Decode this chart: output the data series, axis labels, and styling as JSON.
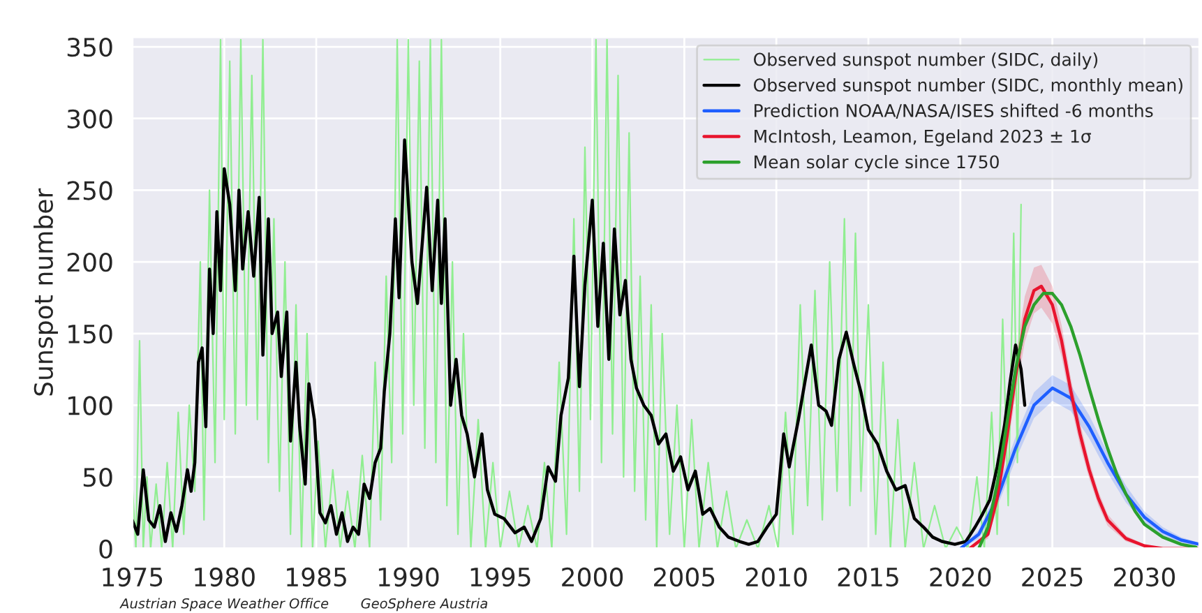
{
  "chart_data": {
    "type": "line",
    "ylabel": "Sunspot number",
    "xlim": [
      1975,
      2033
    ],
    "ylim": [
      0,
      357
    ],
    "xticks": [
      1975,
      1980,
      1985,
      1990,
      1995,
      2000,
      2005,
      2010,
      2015,
      2020,
      2025,
      2030
    ],
    "yticks": [
      0,
      50,
      100,
      150,
      200,
      250,
      300,
      350
    ],
    "grid": true,
    "legend": "top right",
    "annotations": [
      "Austrian Space Weather Office",
      "GeoSphere Austria"
    ],
    "series": [
      {
        "name": "Observed sunspot number (SIDC, daily)",
        "color": "#90ee90",
        "x": [
          1975.0,
          1975.2,
          1975.4,
          1975.6,
          1975.8,
          1976.0,
          1976.3,
          1976.6,
          1976.9,
          1977.2,
          1977.5,
          1977.8,
          1978.1,
          1978.4,
          1978.7,
          1978.9,
          1979.2,
          1979.5,
          1979.8,
          1980.0,
          1980.3,
          1980.6,
          1980.9,
          1981.2,
          1981.5,
          1981.8,
          1982.1,
          1982.4,
          1982.7,
          1983.0,
          1983.3,
          1983.6,
          1983.9,
          1984.2,
          1984.5,
          1984.8,
          1985.1,
          1985.5,
          1985.9,
          1986.3,
          1986.7,
          1987.1,
          1987.5,
          1987.9,
          1988.2,
          1988.5,
          1988.8,
          1989.1,
          1989.4,
          1989.7,
          1990.0,
          1990.3,
          1990.6,
          1990.9,
          1991.2,
          1991.5,
          1991.8,
          1992.1,
          1992.4,
          1992.7,
          1993.0,
          1993.4,
          1993.8,
          1994.2,
          1994.6,
          1995.0,
          1995.5,
          1996.0,
          1996.5,
          1997.0,
          1997.4,
          1997.8,
          1998.2,
          1998.6,
          1999.0,
          1999.3,
          1999.6,
          1999.9,
          2000.2,
          2000.5,
          2000.8,
          2001.1,
          2001.4,
          2001.7,
          2002.0,
          2002.3,
          2002.6,
          2002.9,
          2003.2,
          2003.5,
          2003.8,
          2004.2,
          2004.6,
          2005.0,
          2005.4,
          2005.8,
          2006.3,
          2006.8,
          2007.3,
          2007.8,
          2008.4,
          2009.0,
          2009.6,
          2010.1,
          2010.5,
          2010.9,
          2011.3,
          2011.7,
          2012.1,
          2012.5,
          2012.9,
          2013.3,
          2013.7,
          2014.0,
          2014.3,
          2014.6,
          2015.0,
          2015.4,
          2015.8,
          2016.2,
          2016.6,
          2017.0,
          2017.5,
          2018.0,
          2018.6,
          2019.2,
          2019.8,
          2020.4,
          2020.9,
          2021.3,
          2021.7,
          2022.0,
          2022.3,
          2022.6,
          2022.9,
          2023.1,
          2023.3
        ],
        "values": [
          45,
          0,
          145,
          0,
          50,
          0,
          45,
          0,
          60,
          0,
          95,
          10,
          100,
          40,
          200,
          20,
          250,
          60,
          355,
          90,
          340,
          80,
          355,
          100,
          330,
          90,
          355,
          60,
          230,
          40,
          200,
          10,
          170,
          0,
          150,
          0,
          75,
          0,
          55,
          0,
          40,
          0,
          65,
          0,
          130,
          20,
          190,
          60,
          355,
          80,
          355,
          100,
          340,
          70,
          355,
          60,
          355,
          30,
          200,
          10,
          150,
          0,
          90,
          0,
          60,
          0,
          40,
          0,
          30,
          0,
          60,
          0,
          130,
          10,
          230,
          40,
          280,
          90,
          355,
          60,
          355,
          80,
          330,
          50,
          290,
          40,
          190,
          20,
          170,
          0,
          150,
          10,
          100,
          0,
          90,
          0,
          60,
          0,
          40,
          0,
          20,
          0,
          30,
          0,
          95,
          10,
          170,
          30,
          180,
          20,
          200,
          40,
          230,
          30,
          220,
          40,
          170,
          10,
          130,
          0,
          90,
          0,
          60,
          0,
          30,
          0,
          15,
          0,
          50,
          0,
          95,
          10,
          160,
          30,
          220,
          60,
          240
        ]
      },
      {
        "name": "Observed sunspot number (SIDC, monthly mean)",
        "color": "#000000",
        "x": [
          1975.0,
          1975.3,
          1975.6,
          1975.9,
          1976.2,
          1976.5,
          1976.8,
          1977.1,
          1977.4,
          1977.7,
          1978.0,
          1978.2,
          1978.4,
          1978.6,
          1978.8,
          1979.0,
          1979.2,
          1979.4,
          1979.6,
          1979.8,
          1980.0,
          1980.3,
          1980.6,
          1980.8,
          1981.0,
          1981.3,
          1981.6,
          1981.9,
          1982.1,
          1982.4,
          1982.6,
          1982.9,
          1983.1,
          1983.4,
          1983.6,
          1983.9,
          1984.1,
          1984.4,
          1984.6,
          1984.9,
          1985.2,
          1985.5,
          1985.8,
          1986.1,
          1986.4,
          1986.7,
          1987.0,
          1987.3,
          1987.6,
          1987.9,
          1988.2,
          1988.5,
          1988.7,
          1989.0,
          1989.3,
          1989.5,
          1989.8,
          1990.2,
          1990.5,
          1991.0,
          1991.3,
          1991.6,
          1991.8,
          1992.0,
          1992.3,
          1992.6,
          1992.9,
          1993.2,
          1993.6,
          1994.0,
          1994.3,
          1994.7,
          1995.2,
          1995.8,
          1996.3,
          1996.7,
          1997.2,
          1997.6,
          1998.0,
          1998.3,
          1998.7,
          1999.0,
          1999.3,
          1999.6,
          2000.0,
          2000.3,
          2000.6,
          2000.9,
          2001.2,
          2001.5,
          2001.8,
          2002.1,
          2002.4,
          2002.8,
          2003.2,
          2003.6,
          2004.0,
          2004.4,
          2004.8,
          2005.2,
          2005.6,
          2006.0,
          2006.4,
          2006.9,
          2007.4,
          2008.0,
          2008.5,
          2009.0,
          2009.5,
          2010.0,
          2010.4,
          2010.7,
          2011.2,
          2011.9,
          2012.3,
          2012.7,
          2013.0,
          2013.4,
          2013.8,
          2014.2,
          2014.6,
          2015.0,
          2015.5,
          2016.0,
          2016.5,
          2017.0,
          2017.5,
          2018.0,
          2018.5,
          2019.0,
          2019.7,
          2020.3,
          2020.8,
          2021.2,
          2021.6,
          2022.0,
          2022.4,
          2022.7,
          2023.0,
          2023.3,
          2023.5
        ],
        "values": [
          20,
          10,
          55,
          20,
          15,
          30,
          5,
          25,
          12,
          30,
          55,
          40,
          60,
          130,
          140,
          85,
          195,
          150,
          235,
          180,
          265,
          240,
          180,
          250,
          195,
          235,
          190,
          245,
          135,
          230,
          150,
          165,
          120,
          165,
          75,
          130,
          85,
          45,
          115,
          90,
          25,
          18,
          30,
          10,
          25,
          5,
          15,
          10,
          45,
          35,
          60,
          70,
          110,
          150,
          230,
          175,
          285,
          200,
          171,
          252,
          180,
          243,
          171,
          230,
          100,
          132,
          93,
          80,
          50,
          80,
          41,
          24,
          21,
          11,
          15,
          5,
          21,
          57,
          47,
          93,
          119,
          204,
          113,
          184,
          243,
          155,
          213,
          132,
          223,
          163,
          187,
          132,
          112,
          100,
          93,
          73,
          80,
          54,
          64,
          41,
          54,
          24,
          28,
          15,
          8,
          5,
          3,
          5,
          15,
          24,
          80,
          57,
          90,
          142,
          100,
          96,
          86,
          132,
          151,
          129,
          109,
          83,
          73,
          54,
          41,
          44,
          21,
          15,
          8,
          5,
          3,
          5,
          15,
          24,
          34,
          57,
          86,
          116,
          142,
          125,
          100
        ]
      },
      {
        "name": "Prediction NOAA/NASA/ISES shifted -6 months",
        "color": "#1f5fff",
        "x": [
          2020.0,
          2021.0,
          2022.0,
          2023.0,
          2024.0,
          2025.0,
          2026.0,
          2027.0,
          2028.0,
          2029.0,
          2030.0,
          2031.0,
          2032.0,
          2033.0
        ],
        "values": [
          0,
          10,
          35,
          70,
          100,
          112,
          105,
          85,
          60,
          38,
          22,
          12,
          6,
          3
        ],
        "lower": [
          0,
          7,
          29,
          62,
          91,
          103,
          96,
          77,
          53,
          32,
          18,
          9,
          4,
          2
        ],
        "upper": [
          0,
          13,
          41,
          78,
          109,
          121,
          114,
          93,
          67,
          44,
          26,
          15,
          8,
          4
        ]
      },
      {
        "name": "McIntosh, Leamon, Egeland 2023 ± 1σ",
        "color": "#e8142e",
        "x": [
          2020.5,
          2021.5,
          2022.0,
          2022.5,
          2023.0,
          2023.5,
          2024.0,
          2024.4,
          2025.0,
          2025.5,
          2026.0,
          2026.5,
          2027.0,
          2027.5,
          2028.0,
          2029.0,
          2030.0,
          2031.0,
          2033.0
        ],
        "values": [
          0,
          10,
          35,
          75,
          120,
          160,
          180,
          183,
          170,
          145,
          110,
          80,
          55,
          35,
          20,
          7,
          2,
          0,
          0
        ],
        "lower": [
          0,
          7,
          29,
          65,
          107,
          144,
          164,
          168,
          157,
          134,
          101,
          72,
          49,
          30,
          16,
          5,
          1,
          0,
          0
        ],
        "upper": [
          0,
          13,
          41,
          85,
          133,
          176,
          196,
          198,
          183,
          156,
          119,
          88,
          61,
          40,
          24,
          9,
          3,
          0,
          0
        ]
      },
      {
        "name": "Mean solar cycle since 1750",
        "color": "#2ca02c",
        "x": [
          2021.0,
          2021.5,
          2022.0,
          2022.5,
          2023.0,
          2023.5,
          2024.0,
          2024.5,
          2025.0,
          2025.5,
          2026.0,
          2026.5,
          2027.0,
          2027.5,
          2028.0,
          2028.5,
          2029.0,
          2029.5,
          2030.0,
          2031.0,
          2032.0,
          2032.8
        ],
        "values": [
          0,
          15,
          45,
          85,
          125,
          155,
          170,
          178,
          178,
          170,
          155,
          135,
          112,
          90,
          70,
          52,
          38,
          26,
          17,
          8,
          3,
          1
        ]
      }
    ]
  }
}
